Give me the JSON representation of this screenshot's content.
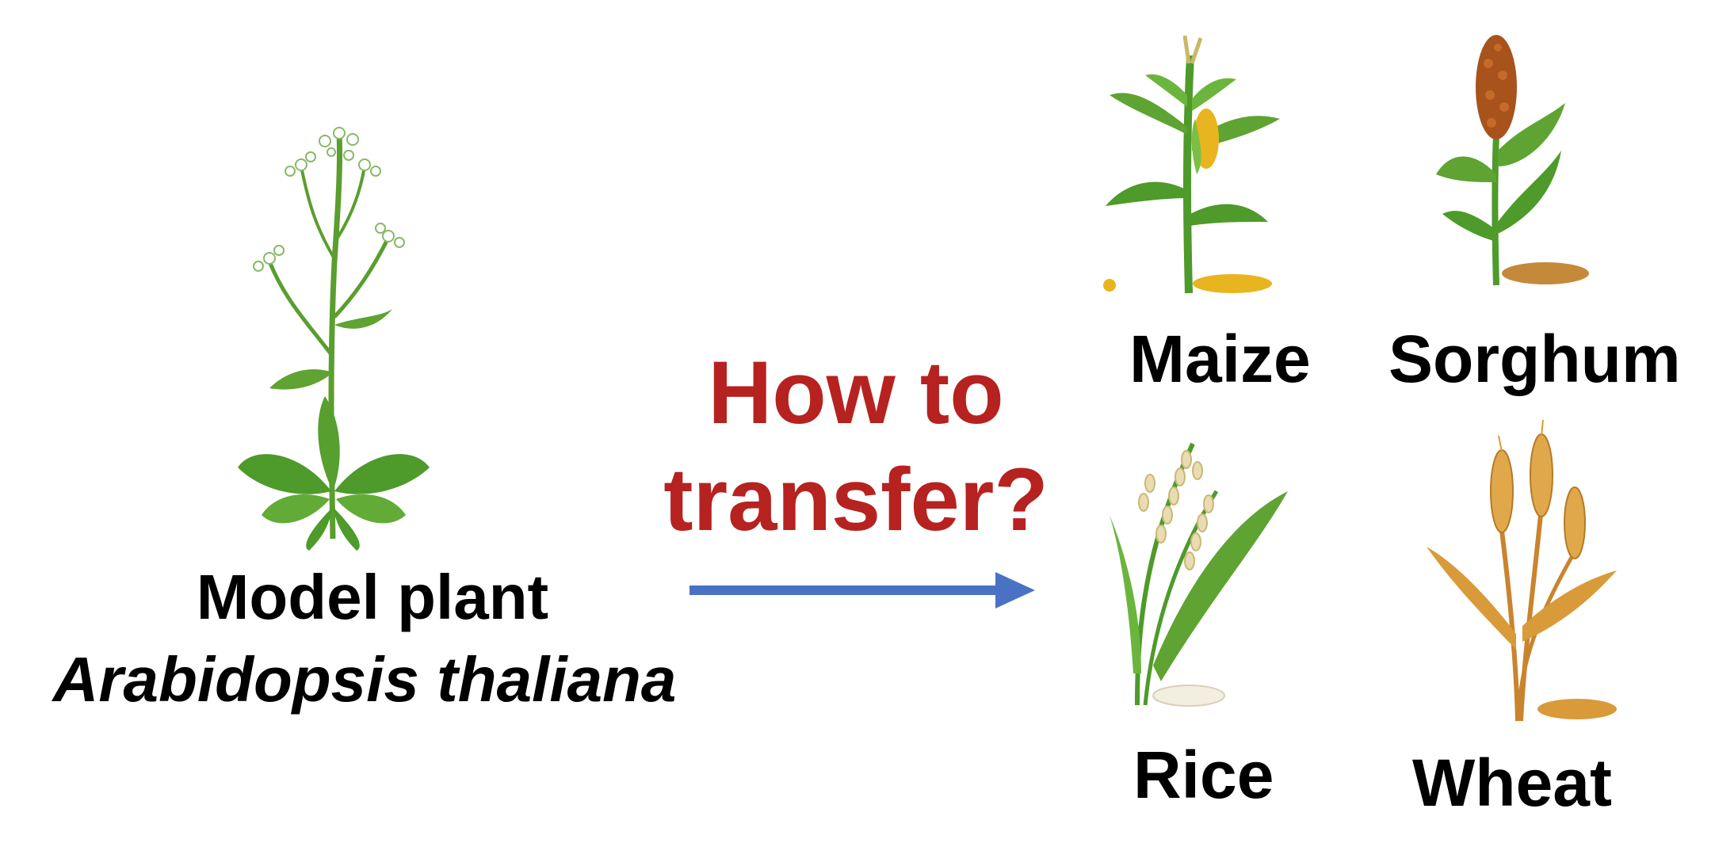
{
  "model_plant": {
    "title": "Model plant",
    "species": "Arabidopsis thaliana"
  },
  "question": {
    "line1": "How to",
    "line2": "transfer?"
  },
  "crops": [
    {
      "name": "Maize",
      "icon": "maize-icon"
    },
    {
      "name": "Sorghum",
      "icon": "sorghum-icon"
    },
    {
      "name": "Rice",
      "icon": "rice-icon"
    },
    {
      "name": "Wheat",
      "icon": "wheat-icon"
    }
  ],
  "colors": {
    "question_text": "#b62220",
    "arrow": "#4a72c4",
    "leaf_green": "#5a9e2e",
    "maize_yellow": "#e8b520",
    "sorghum_brown": "#a8521c",
    "rice_cream": "#e8dcb0",
    "wheat_gold": "#d99a3a"
  }
}
